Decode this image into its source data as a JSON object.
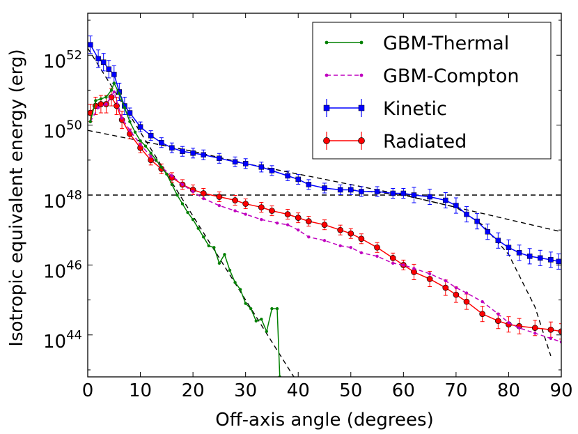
{
  "chart_data": {
    "type": "line",
    "title": "",
    "xlabel": "Off-axis angle (degrees)",
    "ylabel": "Isotropic equivalent energy (erg)",
    "xlim": [
      0,
      90
    ],
    "ylim_log10": [
      42.8,
      53.2
    ],
    "yscale": "log",
    "grid": false,
    "legend_position": "top-right",
    "x_ticks": [
      0,
      10,
      20,
      30,
      40,
      50,
      60,
      70,
      80,
      90
    ],
    "x_tick_labels": [
      "0",
      "10",
      "20",
      "30",
      "40",
      "50",
      "60",
      "70",
      "80",
      "90"
    ],
    "y_ticks_log10": [
      44,
      46,
      48,
      50,
      52
    ],
    "y_tick_base": "10",
    "y_tick_exponents": [
      "44",
      "46",
      "48",
      "50",
      "52"
    ],
    "series": [
      {
        "name": "GBM-Thermal",
        "color": "#008000",
        "marker": "dot",
        "linestyle": "solid",
        "x": [
          0.5,
          1.5,
          2.5,
          3.5,
          4.5,
          5,
          6,
          7,
          8,
          9,
          10,
          11,
          12,
          13,
          14,
          15,
          16,
          17,
          18,
          19,
          20,
          21,
          22,
          23,
          24,
          25,
          26,
          27,
          28,
          29,
          30,
          31,
          32,
          33,
          34,
          35,
          36,
          36.5
        ],
        "log10_values": [
          50.1,
          50.7,
          50.75,
          50.8,
          51.0,
          51.2,
          50.9,
          50.5,
          50.1,
          49.8,
          49.55,
          49.4,
          49.2,
          49.0,
          48.8,
          48.6,
          48.3,
          48.0,
          47.75,
          47.5,
          47.3,
          47.05,
          46.8,
          46.55,
          46.5,
          46.05,
          46.3,
          45.85,
          45.5,
          45.3,
          44.9,
          44.75,
          44.4,
          44.45,
          44.1,
          44.75,
          44.75,
          42.8
        ]
      },
      {
        "name": "GBM-Compton",
        "color": "#bf00bf",
        "marker": "dot",
        "linestyle": "dashed",
        "x": [
          0.5,
          2,
          3.5,
          5,
          6.5,
          8,
          10,
          12,
          14,
          16,
          18,
          20,
          22,
          25,
          28,
          30,
          33,
          36,
          38,
          40,
          42,
          45,
          48,
          50,
          52,
          55,
          58,
          60,
          62,
          65,
          68,
          70,
          72,
          75,
          78,
          80,
          82,
          85,
          88,
          90
        ],
        "log10_values": [
          50.1,
          50.5,
          50.6,
          50.95,
          50.2,
          49.85,
          49.45,
          49.1,
          48.8,
          48.55,
          48.3,
          48.1,
          47.9,
          47.7,
          47.55,
          47.45,
          47.3,
          47.2,
          47.15,
          47.0,
          46.8,
          46.7,
          46.55,
          46.5,
          46.35,
          46.25,
          46.05,
          46.0,
          45.9,
          45.75,
          45.55,
          45.35,
          45.2,
          44.95,
          44.6,
          44.35,
          44.2,
          44.05,
          43.9,
          43.8
        ]
      },
      {
        "name": "Kinetic",
        "color": "#0000ff",
        "marker": "square",
        "linestyle": "solid",
        "errorbars": true,
        "x": [
          0.5,
          2,
          3,
          4,
          5,
          6,
          7,
          8,
          10,
          12,
          14,
          16,
          18,
          20,
          22,
          25,
          28,
          30,
          33,
          35,
          38,
          40,
          42,
          45,
          48,
          50,
          52,
          55,
          58,
          60,
          62,
          65,
          68,
          70,
          72,
          74,
          76,
          78,
          80,
          82,
          84,
          86,
          88,
          89.5
        ],
        "log10_values": [
          52.3,
          51.9,
          51.8,
          51.6,
          51.45,
          50.95,
          50.55,
          50.35,
          49.95,
          49.7,
          49.5,
          49.35,
          49.25,
          49.2,
          49.15,
          49.05,
          48.95,
          48.9,
          48.8,
          48.7,
          48.55,
          48.45,
          48.3,
          48.2,
          48.15,
          48.15,
          48.1,
          48.1,
          48.05,
          48.05,
          48.0,
          47.95,
          47.85,
          47.7,
          47.45,
          47.25,
          46.95,
          46.7,
          46.5,
          46.35,
          46.25,
          46.2,
          46.15,
          46.1
        ]
      },
      {
        "name": "Radiated",
        "color": "#ff0000",
        "marker": "circle",
        "linestyle": "solid",
        "errorbars": true,
        "x": [
          0.5,
          1.5,
          2.5,
          3.5,
          4.5,
          5.5,
          6.5,
          8,
          10,
          12,
          14,
          16,
          18,
          20,
          22,
          25,
          28,
          30,
          33,
          35,
          38,
          40,
          42,
          45,
          48,
          50,
          52,
          55,
          58,
          60,
          62,
          65,
          68,
          70,
          72,
          75,
          78,
          80,
          82,
          85,
          88,
          90
        ],
        "log10_values": [
          50.35,
          50.55,
          50.6,
          50.6,
          50.8,
          50.55,
          50.15,
          49.75,
          49.35,
          49.0,
          48.75,
          48.5,
          48.3,
          48.15,
          48.05,
          47.95,
          47.85,
          47.75,
          47.65,
          47.55,
          47.45,
          47.35,
          47.25,
          47.15,
          47.0,
          46.9,
          46.75,
          46.5,
          46.2,
          46.0,
          45.8,
          45.6,
          45.35,
          45.15,
          44.95,
          44.6,
          44.4,
          44.3,
          44.25,
          44.2,
          44.15,
          44.1
        ]
      }
    ],
    "reference_lines": [
      {
        "style": "dashed",
        "color": "#000000",
        "x": [
          0,
          90
        ],
        "log10_values": [
          48.0,
          48.0
        ]
      },
      {
        "style": "dashed",
        "color": "#000000",
        "x": [
          0,
          10,
          20,
          30,
          40,
          50,
          60,
          70,
          80,
          90
        ],
        "log10_values": [
          49.85,
          49.55,
          49.25,
          48.9,
          48.6,
          48.3,
          48.0,
          47.65,
          47.3,
          46.95
        ]
      },
      {
        "style": "dashed",
        "color": "#000000",
        "x": [
          0,
          5,
          10,
          15,
          20,
          25,
          30,
          35,
          40
        ],
        "log10_values": [
          52.2,
          51.0,
          49.8,
          48.6,
          47.4,
          46.2,
          45.0,
          43.8,
          42.6
        ]
      },
      {
        "style": "dashed",
        "color": "#000000",
        "x": [
          50,
          60,
          70,
          75,
          80,
          85,
          88
        ],
        "log10_values": [
          48.15,
          48.0,
          47.65,
          47.15,
          46.3,
          44.8,
          43.4
        ]
      }
    ]
  }
}
